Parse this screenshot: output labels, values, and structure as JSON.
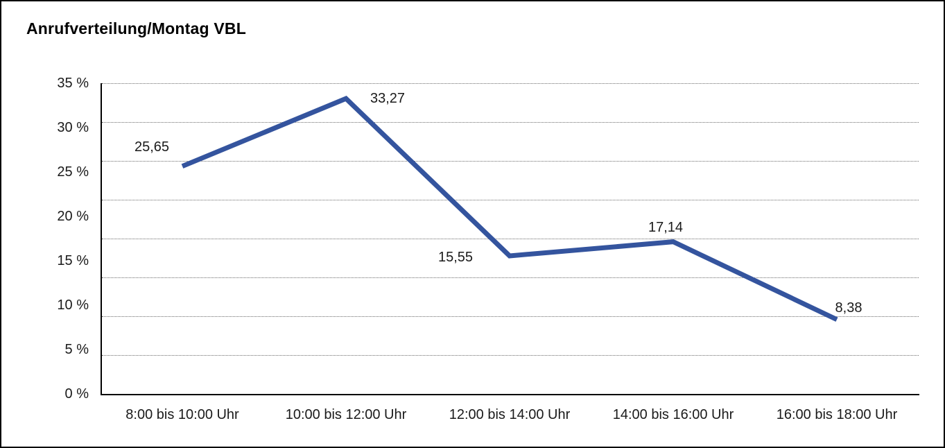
{
  "title": "Anrufverteilung/Montag VBL",
  "colors": {
    "line": "#34549E",
    "text": "#1A1A1A",
    "grid": "#6B6B6B",
    "axis": "#000000",
    "border": "#000000",
    "background": "#FFFFFF"
  },
  "chart_data": {
    "type": "line",
    "title": "Anrufverteilung/Montag VBL",
    "categories": [
      "8:00 bis 10:00 Uhr",
      "10:00 bis 12:00 Uhr",
      "12:00 bis 14:00 Uhr",
      "14:00 bis 16:00 Uhr",
      "16:00 bis 18:00 Uhr"
    ],
    "values": [
      25.65,
      33.27,
      15.55,
      17.14,
      8.38
    ],
    "point_labels": [
      "25,65",
      "33,27",
      "15,55",
      "17,14",
      "8,38"
    ],
    "y_ticks": [
      "35 %",
      "30 %",
      "25 %",
      "20 %",
      "15 %",
      "10 %",
      "5 %",
      "0 %"
    ],
    "ylim": [
      0,
      35
    ],
    "xlabel": "",
    "ylabel": "",
    "grid": "horizontal-dotted",
    "grid_intervals": 8,
    "legend": "none"
  }
}
